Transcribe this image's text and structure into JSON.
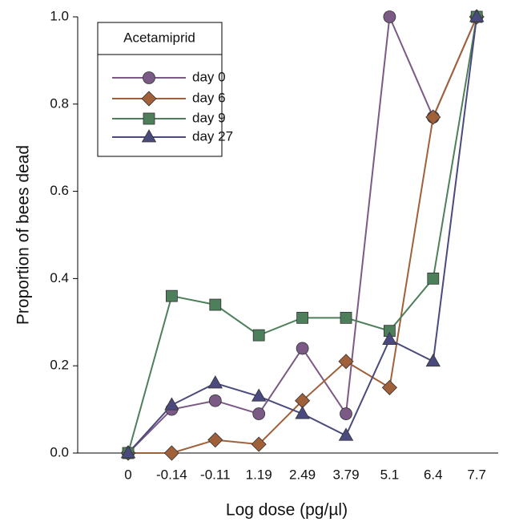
{
  "chart_data": {
    "type": "line",
    "x_label": "Log dose (pg/µl)",
    "y_label": "Proportion of bees dead",
    "legend_title": "Acetamiprid",
    "categories": [
      "0",
      "-0.14",
      "-0.11",
      "1.19",
      "2.49",
      "3.79",
      "5.1",
      "6.4",
      "7.7"
    ],
    "series": [
      {
        "name": "day 0",
        "color": "#7b5a85",
        "marker": "circle",
        "values": [
          0,
          0.1,
          0.12,
          0.09,
          0.24,
          0.09,
          1.0,
          0.77,
          1.0
        ]
      },
      {
        "name": "day 6",
        "color": "#a0603a",
        "marker": "diamond",
        "values": [
          0,
          0,
          0.03,
          0.02,
          0.12,
          0.21,
          0.15,
          0.77,
          1.0
        ]
      },
      {
        "name": "day 9",
        "color": "#4d7f5a",
        "marker": "square",
        "values": [
          0,
          0.36,
          0.34,
          0.27,
          0.31,
          0.31,
          0.28,
          0.4,
          1.0
        ]
      },
      {
        "name": "day 27",
        "color": "#4a4a7e",
        "marker": "triangle",
        "values": [
          0,
          0.11,
          0.16,
          0.13,
          0.09,
          0.04,
          0.26,
          0.21,
          1.0
        ]
      }
    ],
    "ylim": [
      0,
      1
    ],
    "yticks": [
      {
        "value": 0,
        "label": "0.0"
      },
      0.2,
      0.4,
      0.6,
      0.8,
      {
        "value": 1,
        "label": "1.0"
      }
    ],
    "legend": "upper left"
  }
}
